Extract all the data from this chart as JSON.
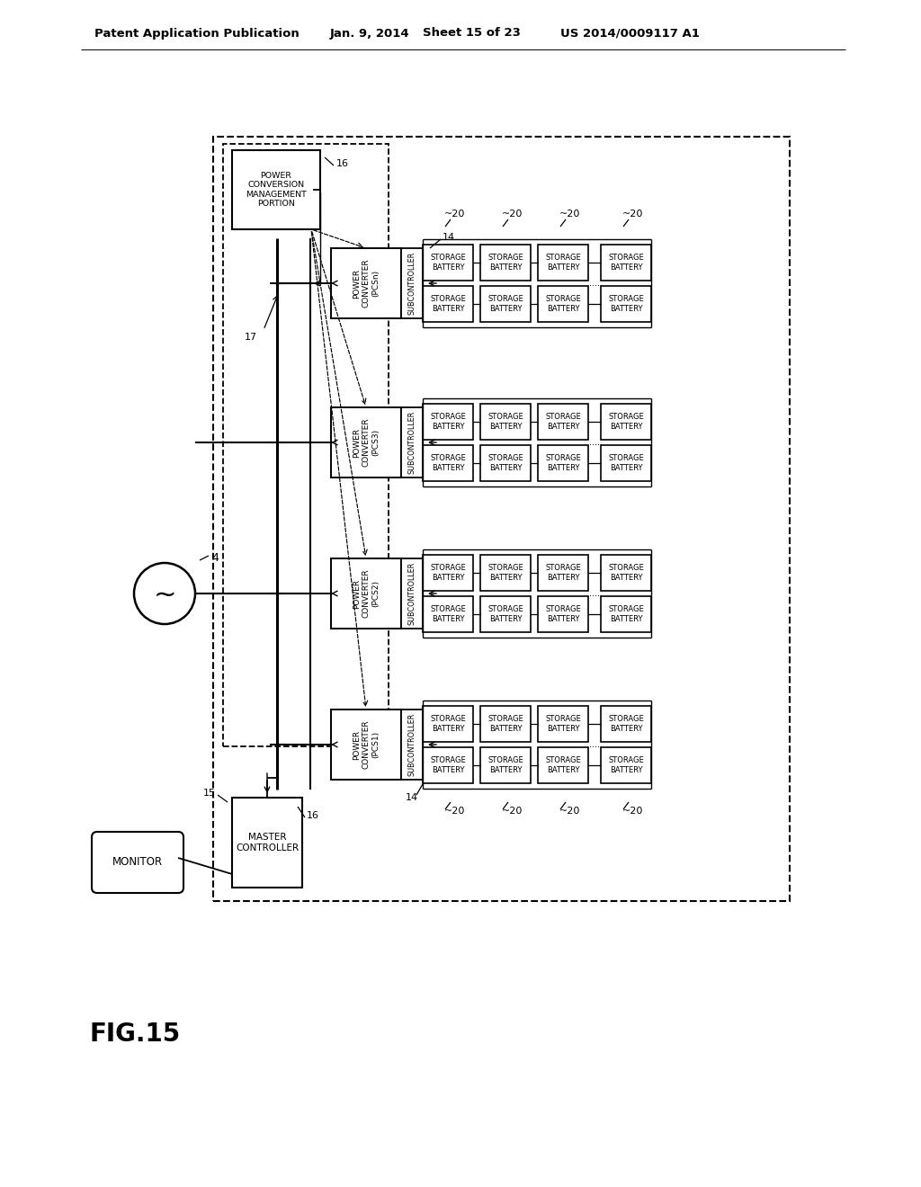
{
  "header_left": "Patent Application Publication",
  "header_date": "Jan. 9, 2014",
  "header_sheet": "Sheet 15 of 23",
  "header_patent": "US 2014/0009117 A1",
  "fig_label": "FIG.15",
  "bg_color": "#ffffff",
  "pcs_labels": [
    "POWER\nCONVERTER\n(PCSn)",
    "POWER\nCONVERTER\n(PCS3)",
    "POWER\nCONVERTER\n(PCS2)",
    "POWER\nCONVERTER\n(PCS1)"
  ]
}
